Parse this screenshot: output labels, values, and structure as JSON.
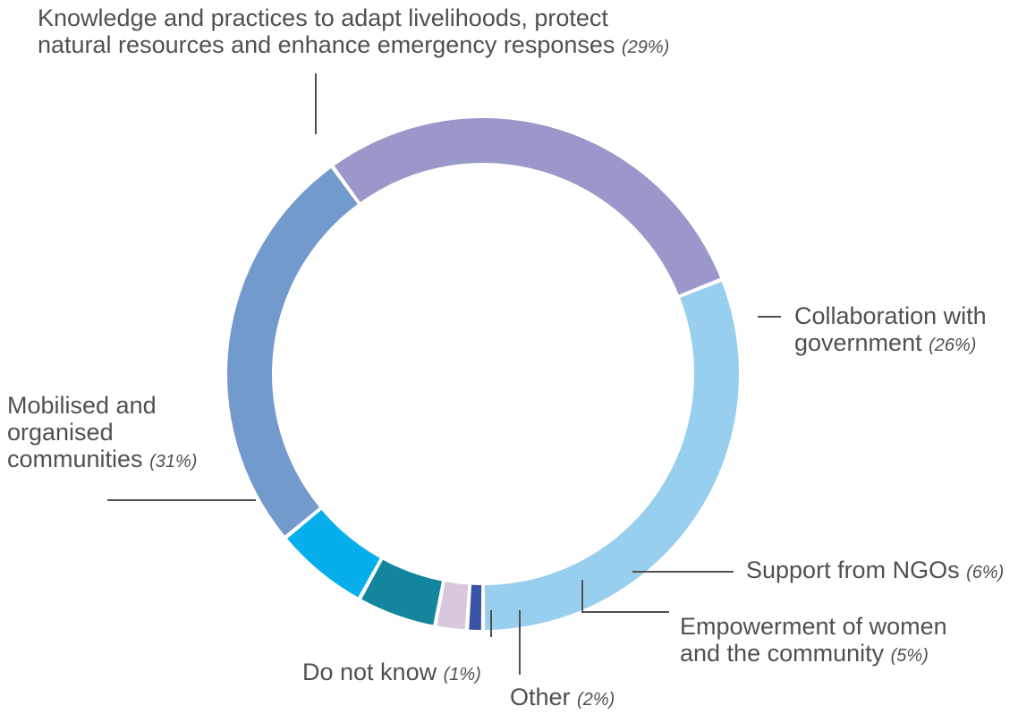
{
  "chart_data": {
    "type": "pie",
    "style": "donut",
    "segments": [
      {
        "label": "Do not know",
        "pct_label": "(1%)",
        "value": 1,
        "color": "#3b53a4"
      },
      {
        "label": "Other",
        "pct_label": "(2%)",
        "value": 2,
        "color": "#d8c8de"
      },
      {
        "label": "Empowerment of women and the community",
        "lines": [
          "Empowerment of women",
          "and the community"
        ],
        "pct_label": "(5%)",
        "value": 5,
        "color": "#13869e"
      },
      {
        "label": "Support from NGOs",
        "pct_label": "(6%)",
        "value": 6,
        "color": "#06aeec"
      },
      {
        "label": "Collaboration with government",
        "lines": [
          "Collaboration with",
          "government"
        ],
        "pct_label": "(26%)",
        "value": 26,
        "color": "#739acc"
      },
      {
        "label": "Knowledge and practices to adapt livelihoods, protect natural resources and enhance emergency responses",
        "lines": [
          "Knowledge and practices to adapt livelihoods, protect",
          "natural resources and enhance emergency responses"
        ],
        "pct_label": "(29%)",
        "value": 29,
        "color": "#9a98ca"
      },
      {
        "label": "Mobilised and organised communities",
        "lines": [
          "Mobilised and",
          "organised",
          "communities"
        ],
        "pct_label": "(31%)",
        "value": 31,
        "color": "#98cfef"
      }
    ]
  }
}
